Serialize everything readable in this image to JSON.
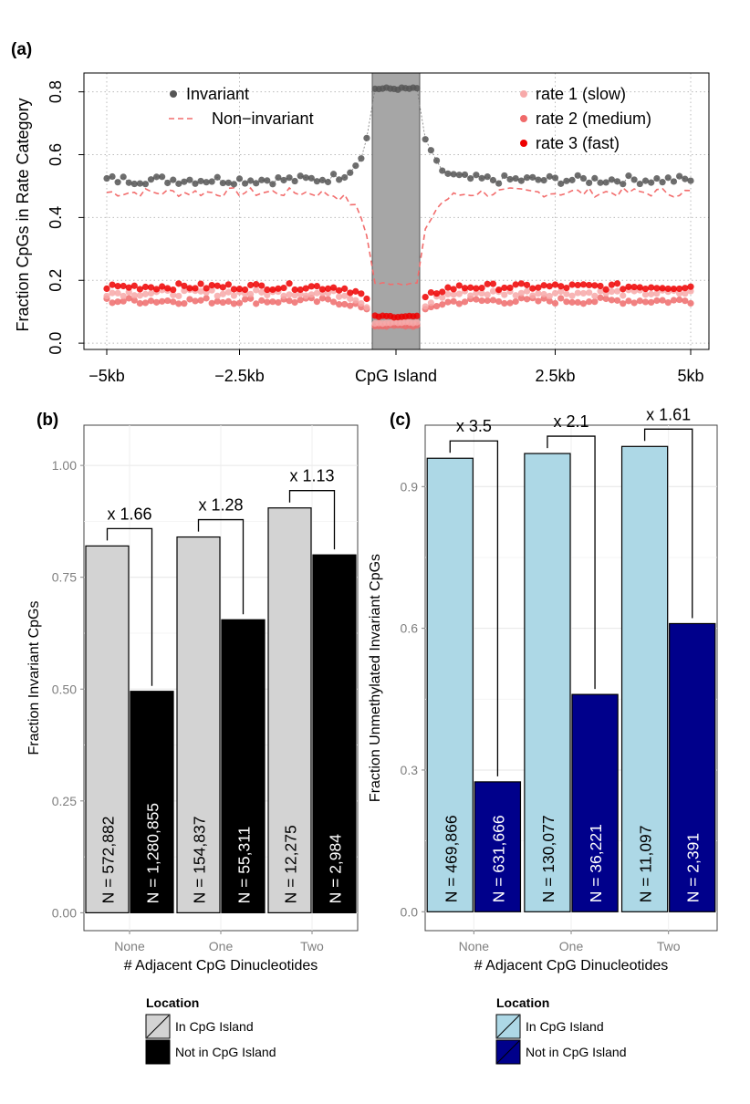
{
  "panels": {
    "a": {
      "letter": "(a)"
    },
    "b": {
      "letter": "(b)"
    },
    "c": {
      "letter": "(c)"
    }
  },
  "chart_data": [
    {
      "id": "a",
      "type": "scatter",
      "title": "",
      "ylabel": "Fraction CpGs in Rate Category",
      "xlabel": "",
      "x_tick_labels": [
        "−5kb",
        "−2.5kb",
        "CpG Island",
        "2.5kb",
        "5kb"
      ],
      "x_tick_values": [
        -5,
        -2.5,
        0,
        2.5,
        5
      ],
      "ylim": [
        -0.02,
        0.86
      ],
      "y_ticks": [
        0.0,
        0.2,
        0.4,
        0.6,
        0.8
      ],
      "y_tick_labels": [
        "0.0",
        "0.2",
        "0.4",
        "0.6",
        "0.8"
      ],
      "grid": true,
      "shaded_region": {
        "label": "CpG Island",
        "color": "#a6a6a6"
      },
      "legend_left": [
        {
          "name": "Invariant",
          "style": "point",
          "color": "#555555"
        },
        {
          "name": "Non−invariant",
          "style": "dashed",
          "color": "#f08080"
        }
      ],
      "legend_right": [
        {
          "name": "rate 1 (slow)",
          "color": "#f7aaaa"
        },
        {
          "name": "rate 2 (medium)",
          "color": "#f06a6a"
        },
        {
          "name": "rate 3 (fast)",
          "color": "#ee0000"
        }
      ],
      "series": [
        {
          "name": "Invariant",
          "left_base": 0.52,
          "island_value": 0.81
        },
        {
          "name": "Non−invariant",
          "left_base": 0.48,
          "island_value": 0.19
        },
        {
          "name": "rate 1 (slow)",
          "left_base": 0.16,
          "island_value": 0.065
        },
        {
          "name": "rate 2 (medium)",
          "left_base": 0.135,
          "island_value": 0.055
        },
        {
          "name": "rate 3 (fast)",
          "left_base": 0.18,
          "island_value": 0.085
        }
      ]
    },
    {
      "id": "b",
      "type": "bar",
      "title": "",
      "ylabel": "Fraction Invariant CpGs",
      "xlabel": "# Adjacent CpG Dinucleotides",
      "categories": [
        "None",
        "One",
        "Two"
      ],
      "ylim": [
        -0.04,
        1.09
      ],
      "y_ticks": [
        0.0,
        0.25,
        0.5,
        0.75,
        1.0
      ],
      "y_tick_labels": [
        "0.00",
        "0.25",
        "0.50",
        "0.75",
        "1.00"
      ],
      "grid": true,
      "series": [
        {
          "name": "In CpG Island",
          "color": "#d3d3d3",
          "text_color": "#000000",
          "values": [
            0.82,
            0.84,
            0.905
          ],
          "n_labels": [
            "N = 572,882",
            "N = 154,837",
            "N = 12,275"
          ]
        },
        {
          "name": "Not in CpG Island",
          "color": "#000000",
          "text_color": "#ffffff",
          "values": [
            0.495,
            0.655,
            0.8
          ],
          "n_labels": [
            "N = 1,280,855",
            "N = 55,311",
            "N = 2,984"
          ]
        }
      ],
      "ratio_labels": [
        "x 1.66",
        "x 1.28",
        "x 1.13"
      ],
      "legend": {
        "title": "Location",
        "items": [
          "In CpG Island",
          "Not in CpG Island"
        ]
      }
    },
    {
      "id": "c",
      "type": "bar",
      "title": "",
      "ylabel": "Fraction Unmethylated Invariant CpGs",
      "xlabel": "# Adjacent CpG Dinucleotides",
      "categories": [
        "None",
        "One",
        "Two"
      ],
      "ylim": [
        -0.04,
        1.03
      ],
      "y_ticks": [
        0.0,
        0.3,
        0.6,
        0.9
      ],
      "y_tick_labels": [
        "0.0",
        "0.3",
        "0.6",
        "0.9"
      ],
      "grid": true,
      "series": [
        {
          "name": "In CpG Island",
          "color": "#add8e6",
          "text_color": "#000000",
          "values": [
            0.96,
            0.97,
            0.985
          ],
          "n_labels": [
            "N = 469,866",
            "N = 130,077",
            "N = 11,097"
          ]
        },
        {
          "name": "Not in CpG Island",
          "color": "#00008b",
          "text_color": "#ffffff",
          "values": [
            0.275,
            0.46,
            0.61
          ],
          "n_labels": [
            "N = 631,666",
            "N = 36,221",
            "N = 2,391"
          ]
        }
      ],
      "ratio_labels": [
        "x 3.5",
        "x 2.1",
        "x 1.61"
      ],
      "legend": {
        "title": "Location",
        "items": [
          "In CpG Island",
          "Not in CpG Island"
        ]
      }
    }
  ]
}
